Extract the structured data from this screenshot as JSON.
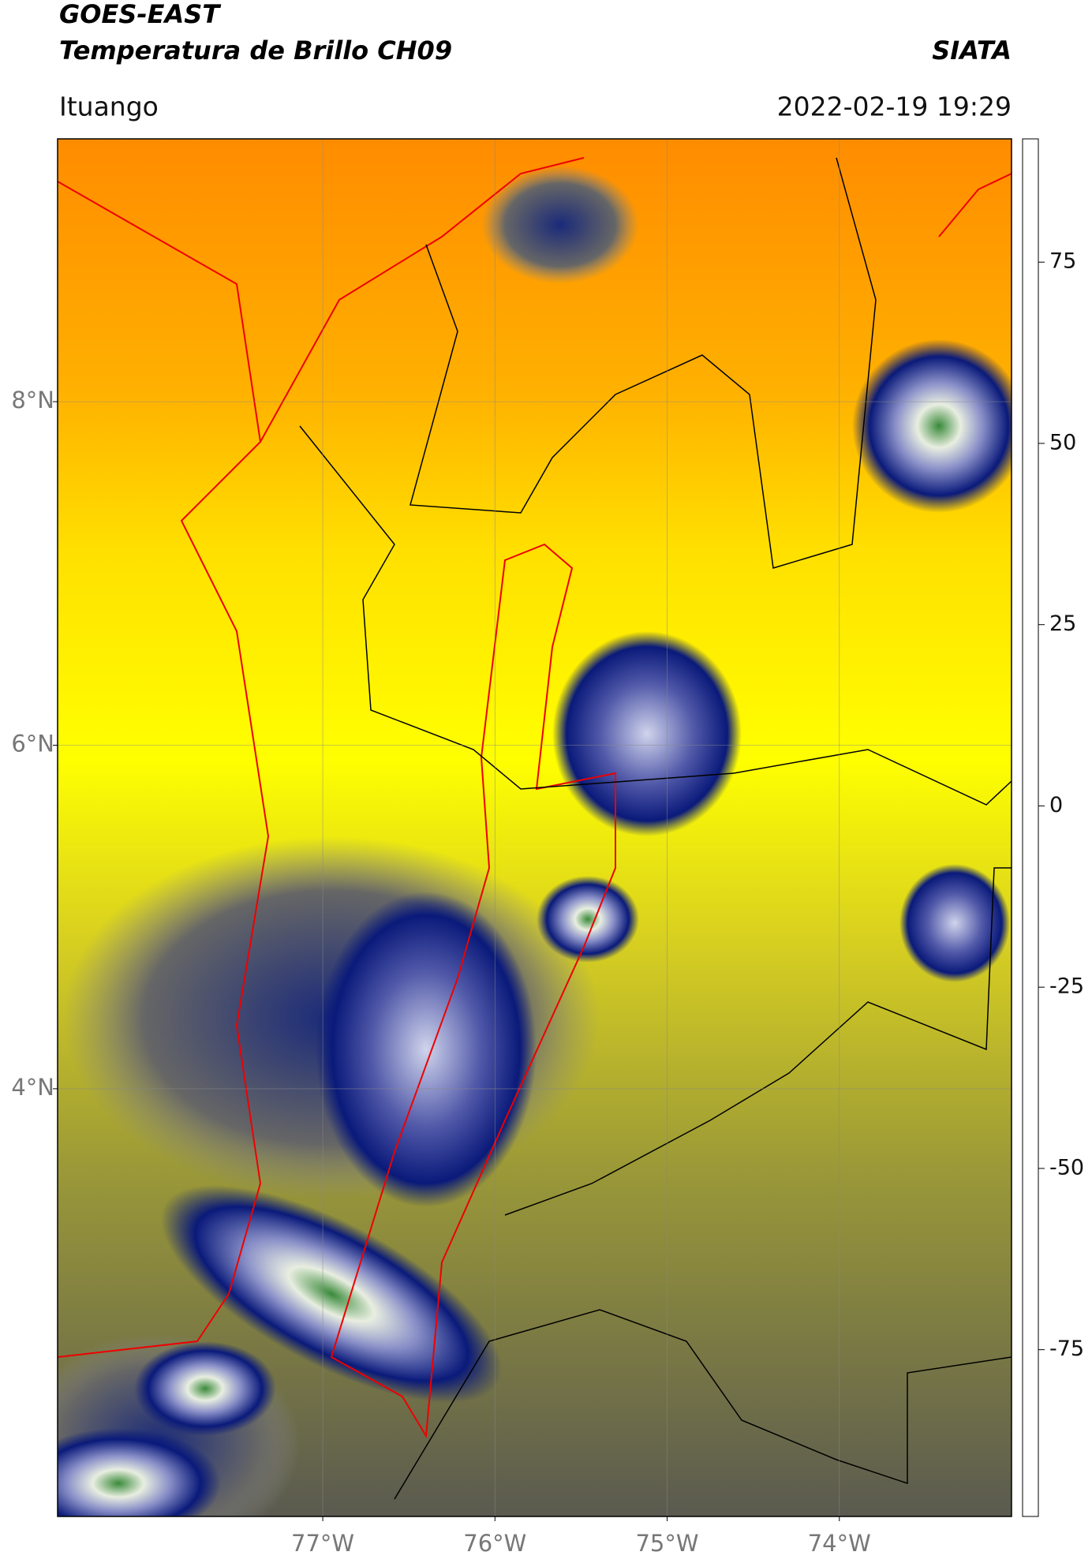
{
  "chart_data": {
    "type": "map",
    "title": "GOES-EAST",
    "subtitle": "Temperatura de Brillo CH09",
    "organization": "SIATA",
    "location": "Ituango",
    "timestamp": "2022-02-19 19:29",
    "xlim": [
      -78.54,
      -73.0
    ],
    "ylim": [
      1.51,
      9.53
    ],
    "xticks": [
      {
        "value": -77,
        "label": "77°W"
      },
      {
        "value": -76,
        "label": "76°W"
      },
      {
        "value": -75,
        "label": "75°W"
      },
      {
        "value": -74,
        "label": "74°W"
      }
    ],
    "yticks": [
      {
        "value": 4,
        "label": "4°N"
      },
      {
        "value": 6,
        "label": "6°N"
      },
      {
        "value": 8,
        "label": "8°N"
      }
    ],
    "grid": true,
    "colorbar": {
      "ylim": [
        -98,
        92
      ],
      "yticks": [
        -75,
        -50,
        -25,
        0,
        25,
        50,
        75
      ],
      "colormap": [
        {
          "value": -98,
          "color": "#ffffff"
        },
        {
          "value": -91,
          "color": "#ffffff"
        },
        {
          "value": -90,
          "color": "#19dcd4"
        },
        {
          "value": -70,
          "color": "#3a8a3a"
        },
        {
          "value": -60,
          "color": "#dfe8d8"
        },
        {
          "value": -50,
          "color": "#ffffff"
        },
        {
          "value": -40,
          "color": "#6a70b8"
        },
        {
          "value": -30,
          "color": "#0a1a7a"
        },
        {
          "value": -25,
          "color": "#555560"
        },
        {
          "value": -15,
          "color": "#b0a830"
        },
        {
          "value": -5,
          "color": "#ffff00"
        },
        {
          "value": 0,
          "color": "#ffa500"
        },
        {
          "value": 5,
          "color": "#ff3000"
        },
        {
          "value": 8,
          "color": "#ff0000"
        },
        {
          "value": 8.5,
          "color": "#000000"
        },
        {
          "value": 92,
          "color": "#000000"
        }
      ]
    }
  }
}
